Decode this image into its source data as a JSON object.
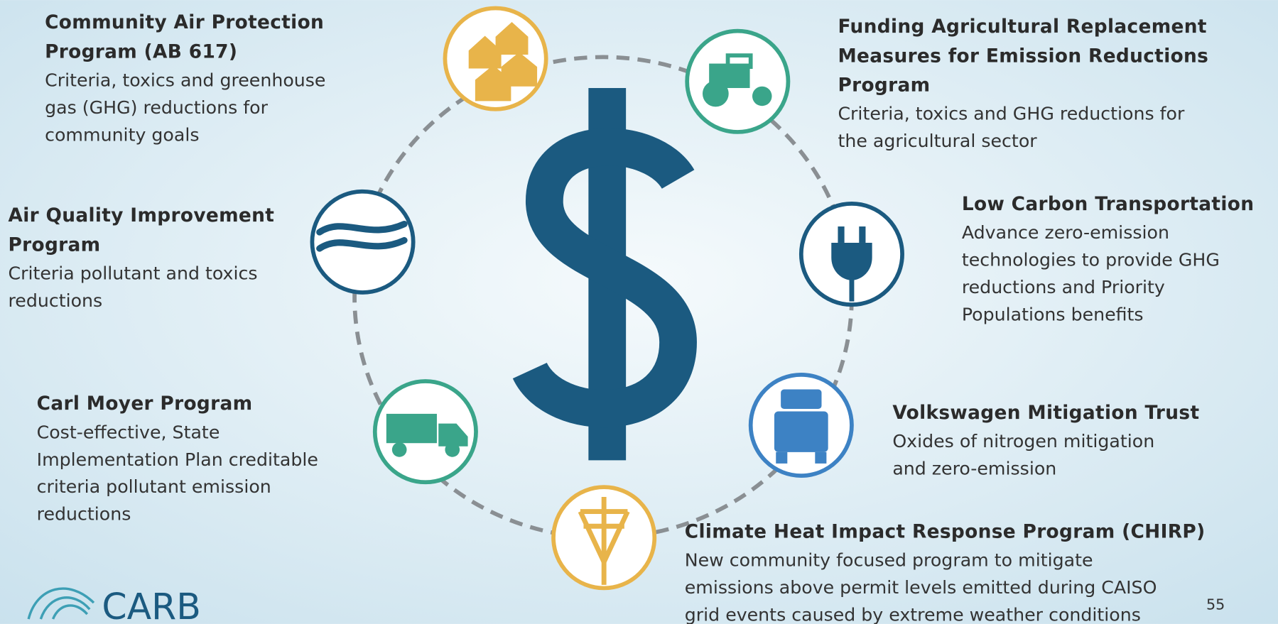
{
  "programs": [
    {
      "title_lines": [
        "Community Air Protection",
        "Program (AB 617)"
      ],
      "description_lines": [
        "Criteria, toxics and greenhouse",
        "gas (GHG) reductions for",
        "community goals"
      ]
    },
    {
      "title_lines": [
        "Air Quality Improvement",
        "Program"
      ],
      "description_lines": [
        "Criteria pollutant and toxics",
        "reductions"
      ]
    },
    {
      "title_lines": [
        "Carl Moyer Program"
      ],
      "description_lines": [
        "Cost-effective, State",
        "Implementation Plan creditable",
        "criteria pollutant emission",
        "reductions"
      ]
    },
    {
      "title_lines": [
        "Funding Agricultural Replacement",
        "Measures for Emission Reductions",
        "Program"
      ],
      "description_lines": [
        "Criteria, toxics and GHG reductions for",
        "the agricultural sector"
      ]
    },
    {
      "title_lines": [
        "Low Carbon Transportation"
      ],
      "description_lines": [
        "Advance zero-emission",
        "technologies to provide GHG",
        "reductions and Priority",
        "Populations benefits"
      ]
    },
    {
      "title_lines": [
        "Volkswagen Mitigation Trust"
      ],
      "description_lines": [
        "Oxides of nitrogen mitigation",
        "and zero-emission"
      ]
    },
    {
      "title_lines": [
        "Climate Heat Impact Response Program (CHIRP)"
      ],
      "description_lines": [
        "New community focused program to mitigate",
        "emissions above permit levels emitted during CAISO",
        "grid events caused by extreme weather conditions"
      ]
    }
  ],
  "logo": "CARB",
  "page_number": 55
}
